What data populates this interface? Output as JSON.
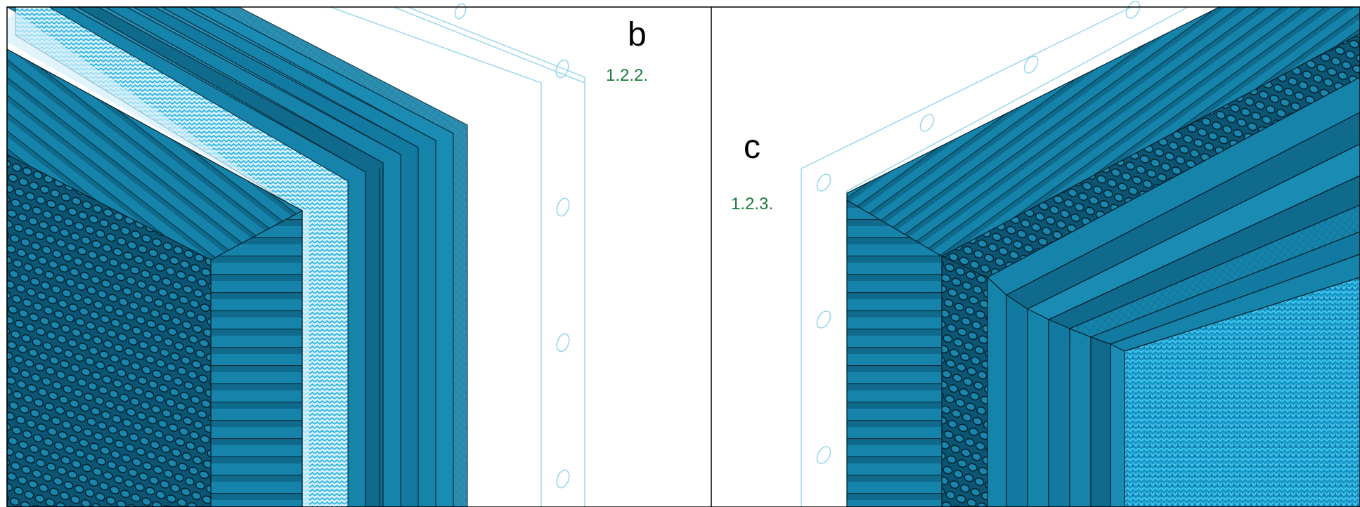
{
  "panels": [
    {
      "letter": "b",
      "code": "1.2.2."
    },
    {
      "letter": "c",
      "code": "1.2.3."
    }
  ],
  "colors": {
    "fiber_dark": "#0f6a8c",
    "fiber_mid": "#1583aa",
    "fiber_light": "#2a9bc2",
    "mesh_bg": "#d4f0fb",
    "mesh_stitch": "#2ab2e2",
    "frame_outline": "#9ad8ea",
    "frame_border": "#000000",
    "code_green": "#1c7a3c"
  }
}
